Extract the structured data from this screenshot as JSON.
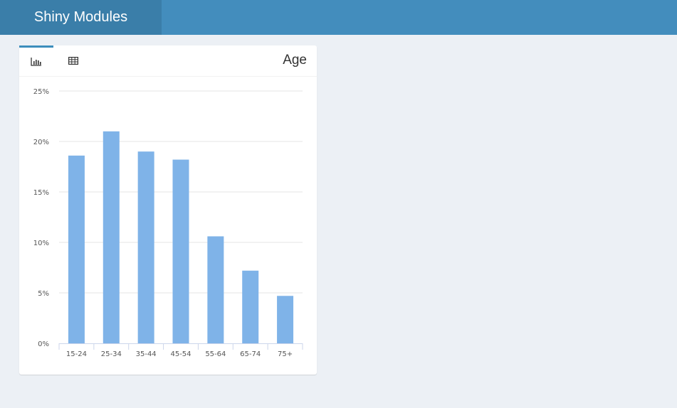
{
  "app": {
    "title": "Shiny Modules"
  },
  "box": {
    "title": "Age",
    "tabs": [
      {
        "icon": "bar-chart-icon",
        "active": true
      },
      {
        "icon": "table-icon",
        "active": false
      }
    ]
  },
  "colors": {
    "header": "#438dbd",
    "logo": "#3a7ea9",
    "bar": "#7fb3e8",
    "background": "#ecf0f5"
  },
  "chart_data": {
    "type": "bar",
    "categories": [
      "15-24",
      "25-34",
      "35-44",
      "45-54",
      "55-64",
      "65-74",
      "75+"
    ],
    "values": [
      18.6,
      21.0,
      19.0,
      18.2,
      10.6,
      7.2,
      4.7
    ],
    "yticks": [
      "0%",
      "5%",
      "10%",
      "15%",
      "20%",
      "25%"
    ],
    "ylim": [
      0,
      25
    ],
    "grid": true,
    "legend": "none"
  }
}
